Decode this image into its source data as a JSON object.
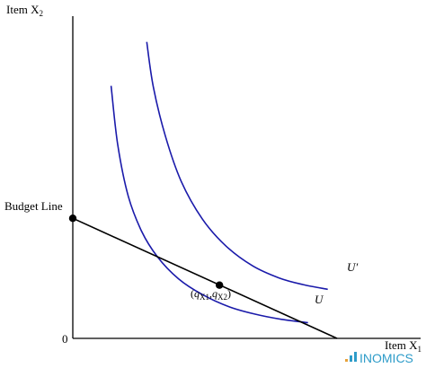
{
  "chart_data": {
    "type": "line",
    "title": "",
    "xlabel": "Item X",
    "xlabel_subscript": "1",
    "ylabel": "Item X",
    "ylabel_subscript": "2",
    "origin_label": "0",
    "xlim": [
      0,
      10
    ],
    "ylim": [
      0,
      10
    ],
    "grid": false,
    "series": [
      {
        "name": "U",
        "color": "#1a1aaa",
        "x": [
          1.45,
          1.7,
          2.1,
          2.6,
          3.2,
          4.0,
          4.9,
          5.9,
          6.9,
          7.9,
          8.9
        ],
        "y": [
          8.35,
          6.4,
          4.7,
          3.55,
          2.7,
          1.97,
          1.45,
          1.05,
          0.8,
          0.63,
          0.52
        ]
      },
      {
        "name": "U′",
        "color": "#1a1aaa",
        "x": [
          2.8,
          3.05,
          3.5,
          4.1,
          4.9,
          5.8,
          6.8,
          7.8,
          8.7,
          9.65
        ],
        "y": [
          9.8,
          8.3,
          6.7,
          5.2,
          3.95,
          3.05,
          2.4,
          2.0,
          1.78,
          1.62
        ]
      },
      {
        "name": "Budget Line",
        "color": "#000000",
        "x": [
          0,
          10
        ],
        "y": [
          3.97,
          0
        ]
      }
    ],
    "points": [
      {
        "name": "Budget Line",
        "x": 0,
        "y": 3.97
      },
      {
        "name": "(qX1,qX2)",
        "x": 5.55,
        "y": 1.76
      }
    ],
    "tangency_label": {
      "open": "(",
      "q1": "q",
      "q1_sub": "X1",
      "sep": ",",
      "q2": "q",
      "q2_sub": "X2",
      "close": ")"
    }
  },
  "labels": {
    "budget_line": "Budget Line",
    "curve_u": "U",
    "curve_u_prime": "U′"
  },
  "brand": {
    "name": "INOMICS",
    "color": "#2e9cc9"
  }
}
